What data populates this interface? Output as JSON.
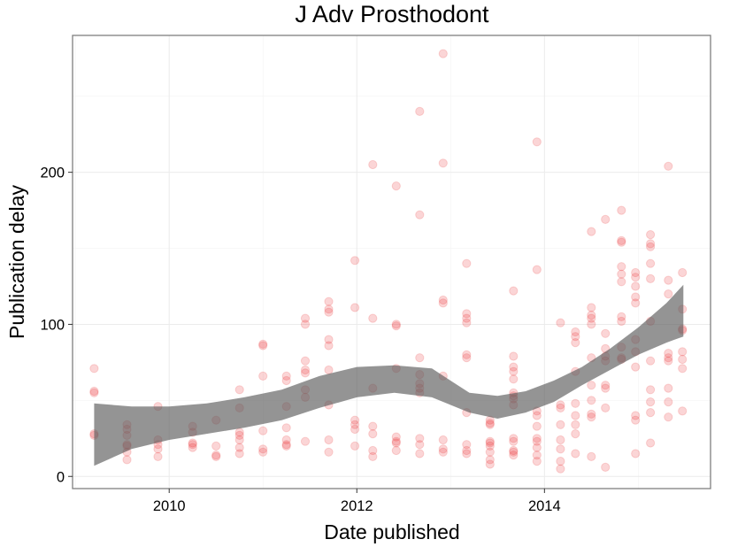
{
  "chart_data": {
    "type": "scatter",
    "title": "J Adv Prosthodont",
    "xlabel": "Date published",
    "ylabel": "Publication delay",
    "xlim": [
      2008.97,
      2015.77
    ],
    "ylim": [
      -8,
      290
    ],
    "x_ticks": [
      2010,
      2012,
      2014
    ],
    "x_tick_labels": [
      "2010",
      "2012",
      "2014"
    ],
    "y_ticks": [
      0,
      100,
      200
    ],
    "y_tick_labels": [
      "0",
      "100",
      "200"
    ],
    "grid": true,
    "point_color": "#e8161b",
    "point_alpha": 0.18,
    "ribbon_color": "#5a5a5a",
    "ribbon_alpha": 0.65,
    "points": [
      [
        2009.2,
        71
      ],
      [
        2009.2,
        56
      ],
      [
        2009.2,
        55
      ],
      [
        2009.2,
        28
      ],
      [
        2009.2,
        27
      ],
      [
        2009.55,
        34
      ],
      [
        2009.55,
        31
      ],
      [
        2009.55,
        27
      ],
      [
        2009.55,
        21
      ],
      [
        2009.55,
        20
      ],
      [
        2009.55,
        16
      ],
      [
        2009.55,
        11
      ],
      [
        2009.88,
        46
      ],
      [
        2009.88,
        24
      ],
      [
        2009.88,
        21
      ],
      [
        2009.88,
        18
      ],
      [
        2009.88,
        13
      ],
      [
        2010.25,
        33
      ],
      [
        2010.25,
        29
      ],
      [
        2010.25,
        22
      ],
      [
        2010.25,
        21
      ],
      [
        2010.25,
        19
      ],
      [
        2010.5,
        37
      ],
      [
        2010.5,
        20
      ],
      [
        2010.5,
        14
      ],
      [
        2010.5,
        13
      ],
      [
        2010.75,
        57
      ],
      [
        2010.75,
        45
      ],
      [
        2010.75,
        29
      ],
      [
        2010.75,
        27
      ],
      [
        2010.75,
        24
      ],
      [
        2010.75,
        19
      ],
      [
        2010.75,
        15
      ],
      [
        2011.0,
        87
      ],
      [
        2011.0,
        86
      ],
      [
        2011.0,
        66
      ],
      [
        2011.0,
        30
      ],
      [
        2011.0,
        18
      ],
      [
        2011.0,
        16
      ],
      [
        2011.25,
        66
      ],
      [
        2011.25,
        63
      ],
      [
        2011.25,
        46
      ],
      [
        2011.25,
        32
      ],
      [
        2011.25,
        24
      ],
      [
        2011.25,
        21
      ],
      [
        2011.25,
        20
      ],
      [
        2011.45,
        104
      ],
      [
        2011.45,
        100
      ],
      [
        2011.45,
        76
      ],
      [
        2011.45,
        70
      ],
      [
        2011.45,
        68
      ],
      [
        2011.45,
        57
      ],
      [
        2011.45,
        52
      ],
      [
        2011.45,
        23
      ],
      [
        2011.7,
        115
      ],
      [
        2011.7,
        110
      ],
      [
        2011.7,
        108
      ],
      [
        2011.7,
        90
      ],
      [
        2011.7,
        86
      ],
      [
        2011.7,
        70
      ],
      [
        2011.7,
        47
      ],
      [
        2011.7,
        24
      ],
      [
        2011.7,
        16
      ],
      [
        2011.98,
        142
      ],
      [
        2011.98,
        111
      ],
      [
        2011.98,
        37
      ],
      [
        2011.98,
        34
      ],
      [
        2011.98,
        31
      ],
      [
        2011.98,
        20
      ],
      [
        2012.17,
        205
      ],
      [
        2012.17,
        104
      ],
      [
        2012.17,
        58
      ],
      [
        2012.17,
        33
      ],
      [
        2012.17,
        28
      ],
      [
        2012.17,
        17
      ],
      [
        2012.17,
        13
      ],
      [
        2012.42,
        191
      ],
      [
        2012.42,
        100
      ],
      [
        2012.42,
        99
      ],
      [
        2012.42,
        71
      ],
      [
        2012.42,
        26
      ],
      [
        2012.42,
        23
      ],
      [
        2012.42,
        22
      ],
      [
        2012.42,
        17
      ],
      [
        2012.67,
        240
      ],
      [
        2012.67,
        172
      ],
      [
        2012.67,
        78
      ],
      [
        2012.67,
        67
      ],
      [
        2012.67,
        61
      ],
      [
        2012.67,
        58
      ],
      [
        2012.67,
        55
      ],
      [
        2012.67,
        25
      ],
      [
        2012.67,
        21
      ],
      [
        2012.67,
        15
      ],
      [
        2012.92,
        278
      ],
      [
        2012.92,
        206
      ],
      [
        2012.92,
        116
      ],
      [
        2012.92,
        114
      ],
      [
        2012.92,
        66
      ],
      [
        2012.92,
        24
      ],
      [
        2012.92,
        18
      ],
      [
        2012.92,
        16
      ],
      [
        2013.17,
        140
      ],
      [
        2013.17,
        107
      ],
      [
        2013.17,
        104
      ],
      [
        2013.17,
        101
      ],
      [
        2013.17,
        80
      ],
      [
        2013.17,
        78
      ],
      [
        2013.17,
        42
      ],
      [
        2013.17,
        21
      ],
      [
        2013.17,
        17
      ],
      [
        2013.17,
        15
      ],
      [
        2013.42,
        37
      ],
      [
        2013.42,
        35
      ],
      [
        2013.42,
        34
      ],
      [
        2013.42,
        23
      ],
      [
        2013.42,
        22
      ],
      [
        2013.42,
        20
      ],
      [
        2013.42,
        16
      ],
      [
        2013.42,
        11
      ],
      [
        2013.42,
        8
      ],
      [
        2013.67,
        122
      ],
      [
        2013.67,
        79
      ],
      [
        2013.67,
        72
      ],
      [
        2013.67,
        69
      ],
      [
        2013.67,
        64
      ],
      [
        2013.67,
        55
      ],
      [
        2013.67,
        53
      ],
      [
        2013.67,
        51
      ],
      [
        2013.67,
        47
      ],
      [
        2013.67,
        25
      ],
      [
        2013.67,
        23
      ],
      [
        2013.67,
        17
      ],
      [
        2013.67,
        16
      ],
      [
        2013.67,
        14
      ],
      [
        2013.92,
        220
      ],
      [
        2013.92,
        136
      ],
      [
        2013.92,
        43
      ],
      [
        2013.92,
        40
      ],
      [
        2013.92,
        33
      ],
      [
        2013.92,
        25
      ],
      [
        2013.92,
        23
      ],
      [
        2013.92,
        19
      ],
      [
        2013.92,
        14
      ],
      [
        2013.92,
        10
      ],
      [
        2014.17,
        101
      ],
      [
        2014.17,
        47
      ],
      [
        2014.17,
        45
      ],
      [
        2014.17,
        34
      ],
      [
        2014.17,
        24
      ],
      [
        2014.17,
        18
      ],
      [
        2014.17,
        10
      ],
      [
        2014.17,
        5
      ],
      [
        2014.33,
        95
      ],
      [
        2014.33,
        92
      ],
      [
        2014.33,
        88
      ],
      [
        2014.33,
        69
      ],
      [
        2014.33,
        48
      ],
      [
        2014.33,
        40
      ],
      [
        2014.33,
        34
      ],
      [
        2014.33,
        28
      ],
      [
        2014.33,
        15
      ],
      [
        2014.5,
        161
      ],
      [
        2014.5,
        111
      ],
      [
        2014.5,
        106
      ],
      [
        2014.5,
        104
      ],
      [
        2014.5,
        100
      ],
      [
        2014.5,
        78
      ],
      [
        2014.5,
        60
      ],
      [
        2014.5,
        50
      ],
      [
        2014.5,
        41
      ],
      [
        2014.5,
        39
      ],
      [
        2014.5,
        13
      ],
      [
        2014.65,
        169
      ],
      [
        2014.65,
        94
      ],
      [
        2014.65,
        84
      ],
      [
        2014.65,
        79
      ],
      [
        2014.65,
        76
      ],
      [
        2014.65,
        60
      ],
      [
        2014.65,
        58
      ],
      [
        2014.65,
        45
      ],
      [
        2014.65,
        6
      ],
      [
        2014.82,
        175
      ],
      [
        2014.82,
        155
      ],
      [
        2014.82,
        154
      ],
      [
        2014.82,
        138
      ],
      [
        2014.82,
        133
      ],
      [
        2014.82,
        128
      ],
      [
        2014.82,
        105
      ],
      [
        2014.82,
        102
      ],
      [
        2014.82,
        85
      ],
      [
        2014.82,
        78
      ],
      [
        2014.82,
        77
      ],
      [
        2014.97,
        134
      ],
      [
        2014.97,
        131
      ],
      [
        2014.97,
        125
      ],
      [
        2014.97,
        118
      ],
      [
        2014.97,
        114
      ],
      [
        2014.97,
        90
      ],
      [
        2014.97,
        82
      ],
      [
        2014.97,
        72
      ],
      [
        2014.97,
        40
      ],
      [
        2014.97,
        37
      ],
      [
        2014.97,
        15
      ],
      [
        2015.13,
        159
      ],
      [
        2015.13,
        153
      ],
      [
        2015.13,
        151
      ],
      [
        2015.13,
        140
      ],
      [
        2015.13,
        130
      ],
      [
        2015.13,
        102
      ],
      [
        2015.13,
        76
      ],
      [
        2015.13,
        57
      ],
      [
        2015.13,
        49
      ],
      [
        2015.13,
        42
      ],
      [
        2015.13,
        22
      ],
      [
        2015.32,
        204
      ],
      [
        2015.32,
        129
      ],
      [
        2015.32,
        120
      ],
      [
        2015.32,
        81
      ],
      [
        2015.32,
        78
      ],
      [
        2015.32,
        76
      ],
      [
        2015.32,
        58
      ],
      [
        2015.32,
        49
      ],
      [
        2015.32,
        39
      ],
      [
        2015.47,
        134
      ],
      [
        2015.47,
        110
      ],
      [
        2015.47,
        97
      ],
      [
        2015.47,
        96
      ],
      [
        2015.47,
        82
      ],
      [
        2015.47,
        77
      ],
      [
        2015.47,
        71
      ],
      [
        2015.47,
        43
      ]
    ],
    "smooth_x": [
      2009.2,
      2009.6,
      2010.0,
      2010.4,
      2010.8,
      2011.2,
      2011.6,
      2012.0,
      2012.4,
      2012.8,
      2013.2,
      2013.5,
      2013.8,
      2014.1,
      2014.4,
      2014.7,
      2015.0,
      2015.3,
      2015.48
    ],
    "smooth_lower": [
      7,
      18,
      24,
      28,
      32,
      37,
      45,
      52,
      55,
      52,
      42,
      38,
      42,
      49,
      60,
      70,
      80,
      88,
      92
    ],
    "smooth_upper": [
      48,
      46,
      46,
      48,
      52,
      57,
      66,
      72,
      73,
      71,
      55,
      53,
      56,
      63,
      72,
      84,
      98,
      114,
      126
    ]
  }
}
